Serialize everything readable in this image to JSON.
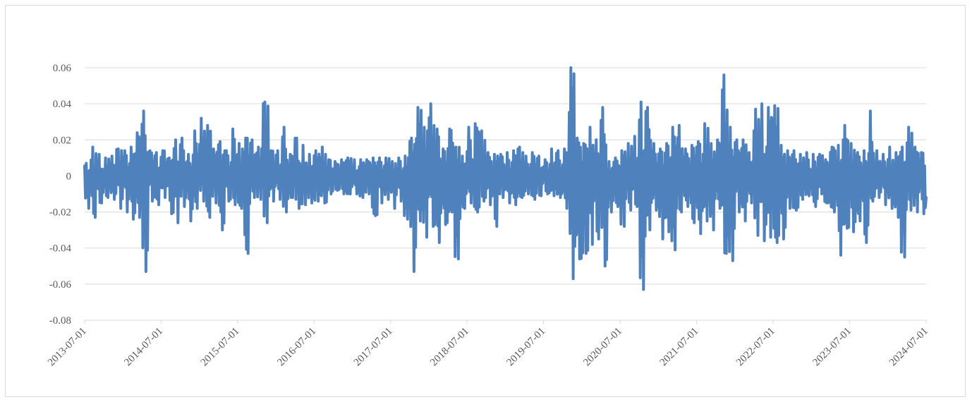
{
  "chart_data": {
    "type": "line",
    "title": "",
    "xlabel": "",
    "ylabel": "",
    "ylim": [
      -0.08,
      0.06
    ],
    "yticks": [
      0.06,
      0.04,
      0.02,
      0,
      -0.02,
      -0.04,
      -0.06,
      -0.08
    ],
    "ytick_labels": [
      "0.06",
      "0.04",
      "0.02",
      "0",
      "-0.02",
      "-0.04",
      "-0.06",
      "-0.08"
    ],
    "xlim": [
      "2013-07-01",
      "2024-07-01"
    ],
    "xtick_labels": [
      "2013-07-01",
      "2014-07-01",
      "2015-07-01",
      "2016-07-01",
      "2017-07-01",
      "2018-07-01",
      "2019-07-01",
      "2020-07-01",
      "2021-07-01",
      "2022-07-01",
      "2023-07-01",
      "2024-07-01"
    ],
    "grid": "horizontal",
    "legend": "none",
    "series_color": "#4f81bd",
    "series": [
      {
        "x": [
          "2013-07-01",
          "2013-08-01",
          "2013-09-01",
          "2013-10-01",
          "2013-11-01",
          "2013-12-01",
          "2014-01-01",
          "2014-02-01",
          "2014-03-01",
          "2014-04-01",
          "2014-05-01",
          "2014-06-01",
          "2014-07-01",
          "2014-08-01",
          "2014-09-01",
          "2014-10-01",
          "2014-11-01",
          "2014-12-01",
          "2015-01-01",
          "2015-02-01",
          "2015-03-01",
          "2015-04-01",
          "2015-05-01",
          "2015-06-01",
          "2015-07-01",
          "2015-08-01",
          "2015-09-01",
          "2015-10-01",
          "2015-11-01",
          "2015-12-01",
          "2016-01-01",
          "2016-02-01",
          "2016-03-01",
          "2016-04-01",
          "2016-05-01",
          "2016-06-01",
          "2016-07-01",
          "2016-08-01",
          "2016-09-01",
          "2016-10-01",
          "2016-11-01",
          "2016-12-01",
          "2017-01-01",
          "2017-02-01",
          "2017-03-01",
          "2017-04-01",
          "2017-05-01",
          "2017-06-01",
          "2017-07-01",
          "2017-08-01",
          "2017-09-01",
          "2017-10-01",
          "2017-11-01",
          "2017-12-01",
          "2018-01-01",
          "2018-02-01",
          "2018-03-01",
          "2018-04-01",
          "2018-05-01",
          "2018-06-01",
          "2018-07-01",
          "2018-08-01",
          "2018-09-01",
          "2018-10-01",
          "2018-11-01",
          "2018-12-01",
          "2019-01-01",
          "2019-02-01",
          "2019-03-01",
          "2019-04-01",
          "2019-05-01",
          "2019-06-01",
          "2019-07-01",
          "2019-08-01",
          "2019-09-01",
          "2019-10-01",
          "2019-11-01",
          "2019-12-01",
          "2020-01-01",
          "2020-02-01",
          "2020-03-01",
          "2020-04-01",
          "2020-05-01",
          "2020-06-01",
          "2020-07-01",
          "2020-08-01",
          "2020-09-01",
          "2020-10-01",
          "2020-11-01",
          "2020-12-01",
          "2021-01-01",
          "2021-02-01",
          "2021-03-01",
          "2021-04-01",
          "2021-05-01",
          "2021-06-01",
          "2021-07-01",
          "2021-08-01",
          "2021-09-01",
          "2021-10-01",
          "2021-11-01",
          "2021-12-01",
          "2022-01-01",
          "2022-02-01",
          "2022-03-01",
          "2022-04-01",
          "2022-05-01",
          "2022-06-01",
          "2022-07-01",
          "2022-08-01",
          "2022-09-01",
          "2022-10-01",
          "2022-11-01",
          "2022-12-01",
          "2023-01-01",
          "2023-02-01",
          "2023-03-01",
          "2023-04-01",
          "2023-05-01",
          "2023-06-01",
          "2023-07-01",
          "2023-08-01",
          "2023-09-01",
          "2023-10-01",
          "2023-11-01",
          "2023-12-01",
          "2024-01-01",
          "2024-02-01",
          "2024-03-01",
          "2024-04-01",
          "2024-05-01",
          "2024-06-01",
          "2024-07-01"
        ],
        "high": [
          0.007,
          0.016,
          0.012,
          0.01,
          0.011,
          0.015,
          0.014,
          0.016,
          0.024,
          0.036,
          0.014,
          0.013,
          0.014,
          0.01,
          0.02,
          0.021,
          0.012,
          0.025,
          0.032,
          0.028,
          0.015,
          0.019,
          0.014,
          0.026,
          0.018,
          0.021,
          0.02,
          0.016,
          0.041,
          0.014,
          0.014,
          0.027,
          0.012,
          0.021,
          0.017,
          0.012,
          0.014,
          0.016,
          0.009,
          0.008,
          0.009,
          0.01,
          0.009,
          0.009,
          0.009,
          0.01,
          0.01,
          0.01,
          0.008,
          0.01,
          0.011,
          0.021,
          0.038,
          0.027,
          0.04,
          0.026,
          0.015,
          0.026,
          0.016,
          0.011,
          0.027,
          0.029,
          0.025,
          0.013,
          0.012,
          0.012,
          0.013,
          0.014,
          0.016,
          0.011,
          0.013,
          0.011,
          0.009,
          0.015,
          0.014,
          0.015,
          0.06,
          0.021,
          0.018,
          0.027,
          0.02,
          0.038,
          0.008,
          0.01,
          0.014,
          0.018,
          0.022,
          0.041,
          0.038,
          0.018,
          0.015,
          0.018,
          0.027,
          0.028,
          0.015,
          0.017,
          0.019,
          0.029,
          0.018,
          0.02,
          0.056,
          0.027,
          0.02,
          0.02,
          0.013,
          0.037,
          0.04,
          0.038,
          0.039,
          0.017,
          0.014,
          0.014,
          0.012,
          0.013,
          0.012,
          0.012,
          0.009,
          0.016,
          0.017,
          0.028,
          0.018,
          0.013,
          0.014,
          0.036,
          0.014,
          0.012,
          0.016,
          0.013,
          0.016,
          0.027,
          0.016,
          0.013,
          0.009
        ],
        "low": [
          -0.018,
          -0.023,
          -0.015,
          -0.012,
          -0.013,
          -0.018,
          -0.02,
          -0.024,
          -0.023,
          -0.053,
          -0.014,
          -0.016,
          -0.012,
          -0.021,
          -0.026,
          -0.017,
          -0.025,
          -0.018,
          -0.014,
          -0.023,
          -0.015,
          -0.03,
          -0.014,
          -0.016,
          -0.018,
          -0.043,
          -0.012,
          -0.013,
          -0.026,
          -0.014,
          -0.013,
          -0.02,
          -0.012,
          -0.018,
          -0.016,
          -0.015,
          -0.014,
          -0.015,
          -0.01,
          -0.008,
          -0.01,
          -0.01,
          -0.01,
          -0.012,
          -0.01,
          -0.022,
          -0.015,
          -0.013,
          -0.018,
          -0.014,
          -0.024,
          -0.053,
          -0.025,
          -0.034,
          -0.028,
          -0.037,
          -0.027,
          -0.02,
          -0.046,
          -0.018,
          -0.015,
          -0.02,
          -0.014,
          -0.016,
          -0.028,
          -0.012,
          -0.015,
          -0.016,
          -0.012,
          -0.01,
          -0.013,
          -0.011,
          -0.01,
          -0.011,
          -0.012,
          -0.018,
          -0.057,
          -0.046,
          -0.043,
          -0.038,
          -0.035,
          -0.05,
          -0.02,
          -0.017,
          -0.028,
          -0.019,
          -0.017,
          -0.063,
          -0.03,
          -0.019,
          -0.035,
          -0.031,
          -0.041,
          -0.02,
          -0.017,
          -0.026,
          -0.032,
          -0.025,
          -0.03,
          -0.018,
          -0.043,
          -0.047,
          -0.02,
          -0.025,
          -0.015,
          -0.033,
          -0.036,
          -0.034,
          -0.037,
          -0.035,
          -0.018,
          -0.019,
          -0.013,
          -0.011,
          -0.017,
          -0.01,
          -0.015,
          -0.02,
          -0.044,
          -0.029,
          -0.031,
          -0.025,
          -0.037,
          -0.014,
          -0.012,
          -0.016,
          -0.018,
          -0.023,
          -0.045,
          -0.019,
          -0.02,
          -0.021,
          -0.012
        ]
      }
    ]
  }
}
